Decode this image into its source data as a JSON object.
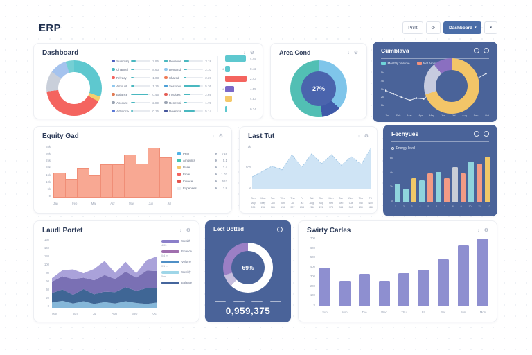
{
  "app": {
    "title": "ERP"
  },
  "toolbar": {
    "print_label": "Print",
    "refresh_icon": "⟳",
    "view_button_label": "Dashboard",
    "view_button_caret": "▾",
    "more_caret": "▾"
  },
  "icons": {
    "download": "↓",
    "gear": "⚙"
  },
  "cards": {
    "dashboard": {
      "title": "Dashboard",
      "chart_data": {
        "type": "donut",
        "segments": [
          {
            "color": "#5ec8cf",
            "value": 30
          },
          {
            "color": "#f3cf6e",
            "value": 3
          },
          {
            "color": "#f4645f",
            "value": 40
          },
          {
            "color": "#c9cfda",
            "value": 12
          },
          {
            "color": "#a5c3ee",
            "value": 10
          },
          {
            "color": "#74cfd4",
            "value": 5
          }
        ]
      },
      "legend_cols": [
        [
          {
            "dot": "#4c5fc0",
            "label": "Summary",
            "pct": 28,
            "value": "2.95"
          },
          {
            "dot": "#49b8c0",
            "label": "Channel",
            "pct": 20,
            "value": "8.63"
          },
          {
            "dot": "#f4645f",
            "label": "Privacy",
            "pct": 16,
            "value": "1.03"
          },
          {
            "dot": "#8fc7ee",
            "label": "Amount",
            "pct": 18,
            "value": "1.15"
          },
          {
            "dot": "#e07a52",
            "label": "Balance",
            "pct": 92,
            "value": "0.45"
          },
          {
            "dot": "#9aa3b2",
            "label": "Account",
            "pct": 22,
            "value": "2.89"
          },
          {
            "dot": "#5a78d6",
            "label": "Advanced",
            "pct": 14,
            "value": "0.15"
          }
        ],
        [
          {
            "dot": "#49b8c0",
            "label": "Revenue",
            "pct": 30,
            "value": "3.18"
          },
          {
            "dot": "#8fc7ee",
            "label": "Demand",
            "pct": 18,
            "value": "2.10"
          },
          {
            "dot": "#ef7a55",
            "label": "Shared",
            "pct": 16,
            "value": "2.37"
          },
          {
            "dot": "#4c9fd6",
            "label": "Sessions",
            "pct": 88,
            "value": "5.36"
          },
          {
            "dot": "#e45b54",
            "label": "Invoices",
            "pct": 38,
            "value": "2.69"
          },
          {
            "dot": "#9aa3b2",
            "label": "Renewal",
            "pct": 20,
            "value": "1.78"
          },
          {
            "dot": "#44549c",
            "label": "Downloads",
            "pct": 60,
            "value": "5.14"
          }
        ]
      ],
      "mini_bars": [
        {
          "color": "#5ec8cf",
          "width": 88,
          "value": "4.45",
          "prefix": ""
        },
        {
          "color": "#5ec8cf",
          "width": 22,
          "value": "0.42",
          "prefix": "4"
        },
        {
          "color": "#f4645f",
          "width": 92,
          "value": "2.43",
          "prefix": ""
        },
        {
          "color": "#7b68c8",
          "width": 38,
          "value": "4.95",
          "prefix": "4"
        },
        {
          "color": "#f5c96a",
          "width": 28,
          "value": "4.53",
          "prefix": ""
        },
        {
          "color": "#5ec8cf",
          "width": 9,
          "value": "0.34",
          "prefix": ""
        }
      ]
    },
    "area_cond": {
      "title": "Area Cond",
      "chart_data": {
        "type": "donut",
        "center": "27%",
        "hole": "#4a64ad",
        "segments": [
          {
            "color": "#7fc5ea",
            "value": 37
          },
          {
            "color": "#3f5aa8",
            "value": 11
          },
          {
            "color": "#52bfb4",
            "value": 52
          }
        ]
      }
    },
    "cumulative": {
      "title": "Cumblava",
      "legend": [
        {
          "swatch": "#6fd4d8",
          "label": "Monthly Volume"
        },
        {
          "swatch": "#f2917c",
          "label": "Net Amount"
        }
      ],
      "chart_data": [
        {
          "type": "line",
          "y_ticks": [
            "5k",
            "4k",
            "3k",
            "2k",
            "1k"
          ],
          "x_ticks": [
            "Jan",
            "Feb",
            "Mar",
            "Apr",
            "May",
            "Jun",
            "Jul",
            "Aug",
            "Sep",
            "Oct"
          ],
          "points": [
            [
              0,
              55
            ],
            [
              8,
              64
            ],
            [
              16,
              74
            ],
            [
              24,
              82
            ],
            [
              30,
              76
            ],
            [
              37,
              78
            ],
            [
              45,
              60
            ],
            [
              52,
              48
            ],
            [
              58,
              56
            ],
            [
              66,
              42
            ],
            [
              76,
              36
            ],
            [
              87,
              24
            ],
            [
              97,
              8
            ]
          ]
        },
        {
          "type": "donut",
          "segments": [
            {
              "color": "#f3c568",
              "value": 70
            },
            {
              "color": "#c6cbdf",
              "value": 19
            },
            {
              "color": "#8a6fc0",
              "value": 11
            }
          ]
        }
      ]
    },
    "equity": {
      "title": "Equity Gad",
      "chart_data": {
        "type": "bar",
        "y_ticks": [
          "35k",
          "30k",
          "25k",
          "20k",
          "15k",
          "10k",
          "5k",
          "0"
        ],
        "x_ticks": [
          "Jan",
          "Feb",
          "Mar",
          "Apr",
          "May",
          "Jun",
          "Jul"
        ],
        "values": [
          50,
          38,
          58,
          44,
          66,
          66,
          86,
          68,
          100,
          80
        ],
        "color": "#f8a893"
      },
      "legend": [
        {
          "icon": "#4fb3e8",
          "label": "Pear",
          "value": "748"
        },
        {
          "icon": "#49c5b1",
          "label": "Amounts",
          "value": "5.1"
        },
        {
          "icon": "#f5c96a",
          "label": "Base",
          "value": "2.4"
        },
        {
          "icon": "#f4645f",
          "label": "Email",
          "value": "1.03"
        },
        {
          "icon": "#e4564f",
          "label": "Invoice",
          "value": "563"
        },
        {
          "icon": "#e8ecf2",
          "label": "Expenses",
          "value": "3.8"
        }
      ]
    },
    "last_test": {
      "title": "Last Tut",
      "chart_data": {
        "type": "area",
        "y_ticks": [
          "1k",
          "500",
          "0"
        ],
        "values": [
          28,
          40,
          52,
          44,
          78,
          50,
          80,
          58,
          78,
          54,
          74,
          56,
          95
        ],
        "x_label_rows": [
          [
            "Sun",
            "May",
            "205"
          ],
          [
            "Mon",
            "May",
            "238"
          ],
          [
            "Tue",
            "Jun",
            "186"
          ],
          [
            "Wed",
            "Jun",
            "178"
          ],
          [
            "Thu",
            "Jul",
            "307"
          ],
          [
            "Fri",
            "Jul",
            "254"
          ],
          [
            "Sat",
            "Aug",
            "216"
          ],
          [
            "Sun",
            "Aug",
            "228"
          ],
          [
            "Mon",
            "Sep",
            "178"
          ],
          [
            "Tue",
            "Sep",
            "264"
          ],
          [
            "Wed",
            "Oct",
            "340"
          ],
          [
            "Thu",
            "Oct",
            "239"
          ],
          [
            "Fri",
            "Nov",
            "318"
          ]
        ]
      }
    },
    "features": {
      "title": "Fechyues",
      "subtitle": "Energy-level",
      "chart_data": {
        "type": "bar",
        "y_ticks": [
          "6k",
          "4k",
          "2k",
          "0"
        ],
        "x_ticks": [
          "1",
          "2",
          "3",
          "4",
          "5",
          "6",
          "7",
          "8",
          "9",
          "10",
          "11",
          "12"
        ],
        "bars": [
          {
            "value": 40,
            "color": "#8fd4dd"
          },
          {
            "value": 30,
            "color": "#8fd4dd"
          },
          {
            "value": 52,
            "color": "#f0c868"
          },
          {
            "value": 48,
            "color": "#8fd4dd"
          },
          {
            "value": 62,
            "color": "#f29b85"
          },
          {
            "value": 66,
            "color": "#8fd4dd"
          },
          {
            "value": 52,
            "color": "#f29b85"
          },
          {
            "value": 76,
            "color": "#c9cdd6"
          },
          {
            "value": 62,
            "color": "#f29b85"
          },
          {
            "value": 88,
            "color": "#8fd4dd"
          },
          {
            "value": 84,
            "color": "#f29b85"
          },
          {
            "value": 98,
            "color": "#f0c868"
          }
        ]
      }
    },
    "portfolio": {
      "title": "Laudl Portet",
      "chart_data": {
        "type": "stacked-area",
        "ymax": 160,
        "y_ticks": [
          "160",
          "140",
          "120",
          "100",
          "80",
          "60",
          "40",
          "20",
          "0"
        ],
        "x_ticks": [
          "May",
          "Jun",
          "Jul",
          "Aug",
          "Sep",
          "Oct"
        ],
        "layers": [
          {
            "color": "#85b7d9",
            "values": [
              12,
              16,
              10,
              15,
              9,
              13,
              10,
              15,
              11,
              9,
              12
            ]
          },
          {
            "color": "#3f6695",
            "values": [
              22,
              26,
              20,
              28,
              22,
              24,
              26,
              32,
              28,
              36,
              34
            ]
          },
          {
            "color": "#7a70b4",
            "values": [
              26,
              30,
              36,
              26,
              32,
              38,
              30,
              36,
              30,
              40,
              38
            ]
          },
          {
            "color": "#aaa2da",
            "values": [
              8,
              14,
              22,
              10,
              26,
              32,
              14,
              22,
              10,
              24,
              34
            ]
          }
        ]
      },
      "legend": [
        {
          "caption": "4.03 +",
          "swatch": "#8b7fc9",
          "label": "Wealth"
        },
        {
          "caption": "0.4 m",
          "swatch": "#a06fae",
          "label": "Finance"
        },
        {
          "caption": "0.1 m",
          "swatch": "#4f8fc6",
          "label": "Volume"
        },
        {
          "caption": "5 m",
          "swatch": "#9fd6e8",
          "label": "Weekly"
        },
        {
          "caption": "",
          "swatch": "#44659c",
          "label": "Balance"
        }
      ]
    },
    "last_output": {
      "title": "Lect Dotted",
      "big_number": "0,959,375",
      "chart_data": {
        "type": "donut",
        "center": "69%",
        "segments": [
          {
            "color": "#ffffff",
            "value": 62
          },
          {
            "color": "#c6bede",
            "value": 8
          },
          {
            "color": "#9b7fc5",
            "value": 30
          }
        ]
      }
    },
    "survey": {
      "title": "Swirty Carles",
      "chart_data": {
        "type": "bar",
        "y_ticks": [
          "700",
          "600",
          "500",
          "400",
          "300",
          "200",
          "100",
          "0"
        ],
        "x_ticks": [
          "Sun",
          "Mon",
          "Tue",
          "Wed",
          "Thu",
          "Fri",
          "Sat",
          "Sun",
          "Mon"
        ],
        "values": [
          55,
          37,
          47,
          37,
          48,
          52,
          67,
          87,
          97
        ],
        "color": "#8e8fd0"
      }
    }
  }
}
